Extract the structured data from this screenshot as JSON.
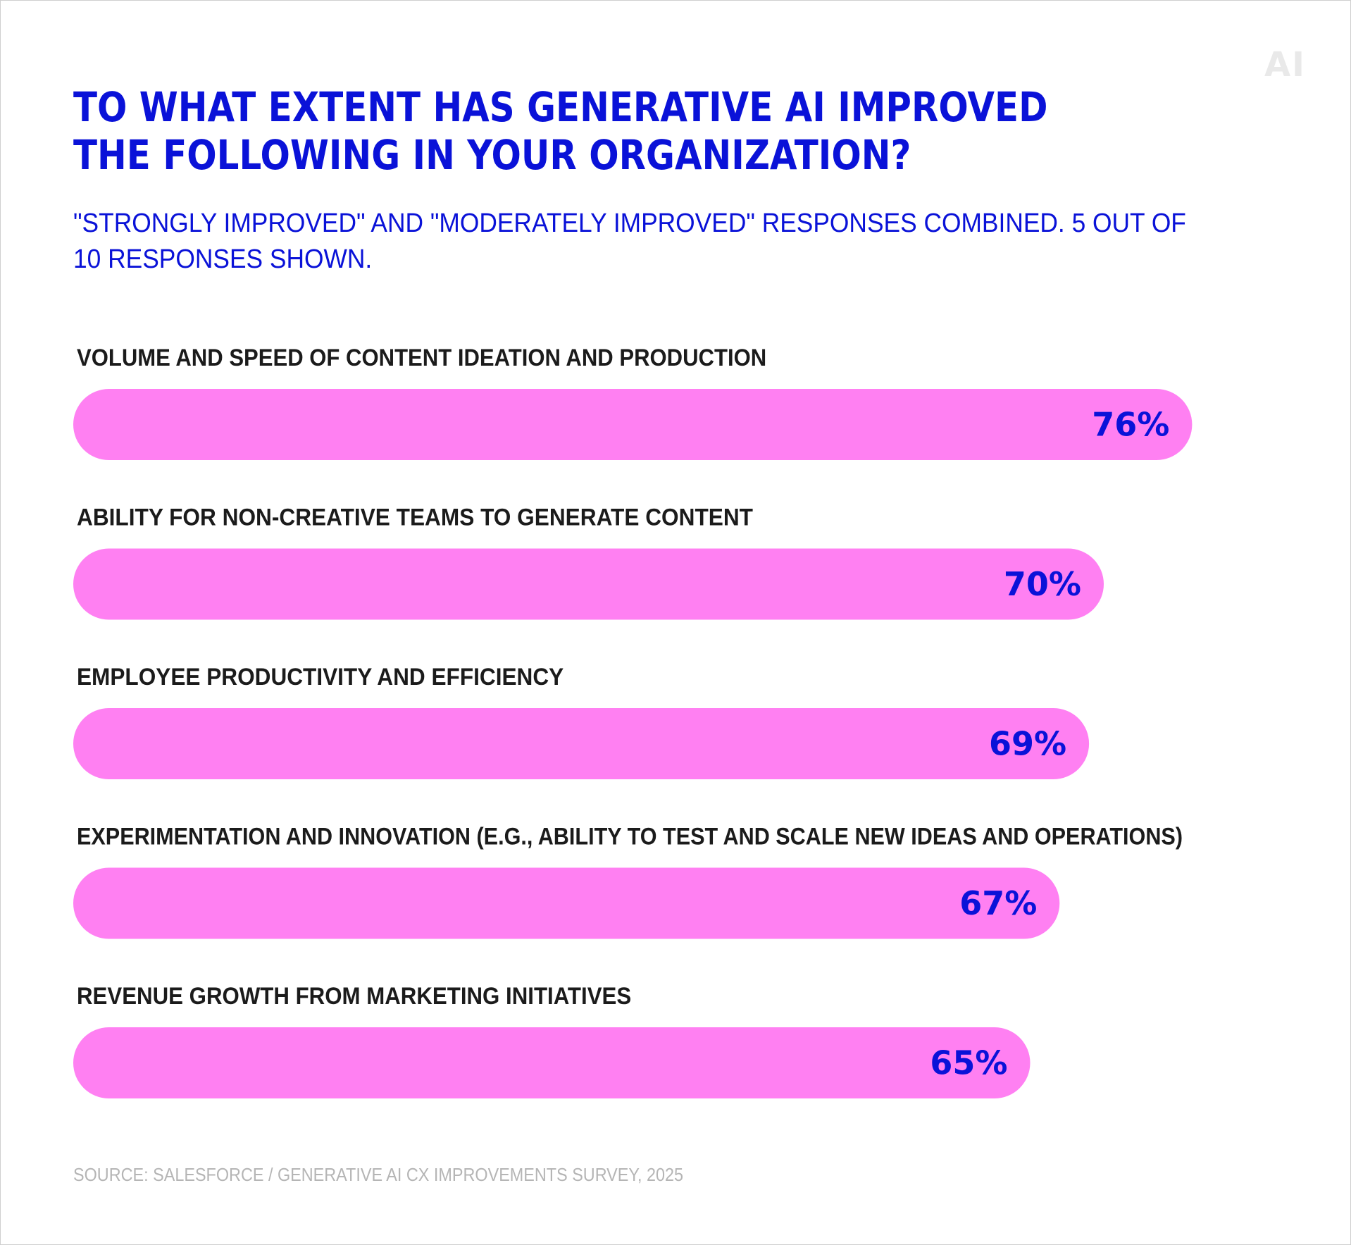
{
  "logo": "AI",
  "chart_data": {
    "type": "bar",
    "orientation": "horizontal",
    "title": "TO WHAT EXTENT HAS GENERATIVE AI IMPROVED THE FOLLOWING IN YOUR ORGANIZATION?",
    "subtitle": "\"STRONGLY IMPROVED\" AND \"MODERATELY IMPROVED\" RESPONSES COMBINED. 5 OUT OF 10 RESPONSES SHOWN.",
    "categories": [
      "VOLUME AND SPEED OF CONTENT IDEATION AND PRODUCTION",
      "ABILITY FOR NON-CREATIVE TEAMS TO GENERATE CONTENT",
      "EMPLOYEE PRODUCTIVITY AND EFFICIENCY",
      "EXPERIMENTATION AND INNOVATION (E.G., ABILITY TO TEST AND SCALE NEW IDEAS AND OPERATIONS)",
      "REVENUE GROWTH FROM MARKETING INITIATIVES"
    ],
    "values": [
      76,
      70,
      69,
      67,
      65
    ],
    "value_labels": [
      "76%",
      "70%",
      "69%",
      "67%",
      "65%"
    ],
    "unit": "%",
    "xlim": [
      0,
      100
    ],
    "grid": false,
    "legend": "none",
    "colors": {
      "bar": "#ff80f2",
      "value_text": "#0a12d8",
      "title": "#0a12d8",
      "category_text": "#1b1b1b"
    },
    "source": "SOURCE: SALESFORCE / GENERATIVE AI CX IMPROVEMENTS SURVEY, 2025"
  }
}
